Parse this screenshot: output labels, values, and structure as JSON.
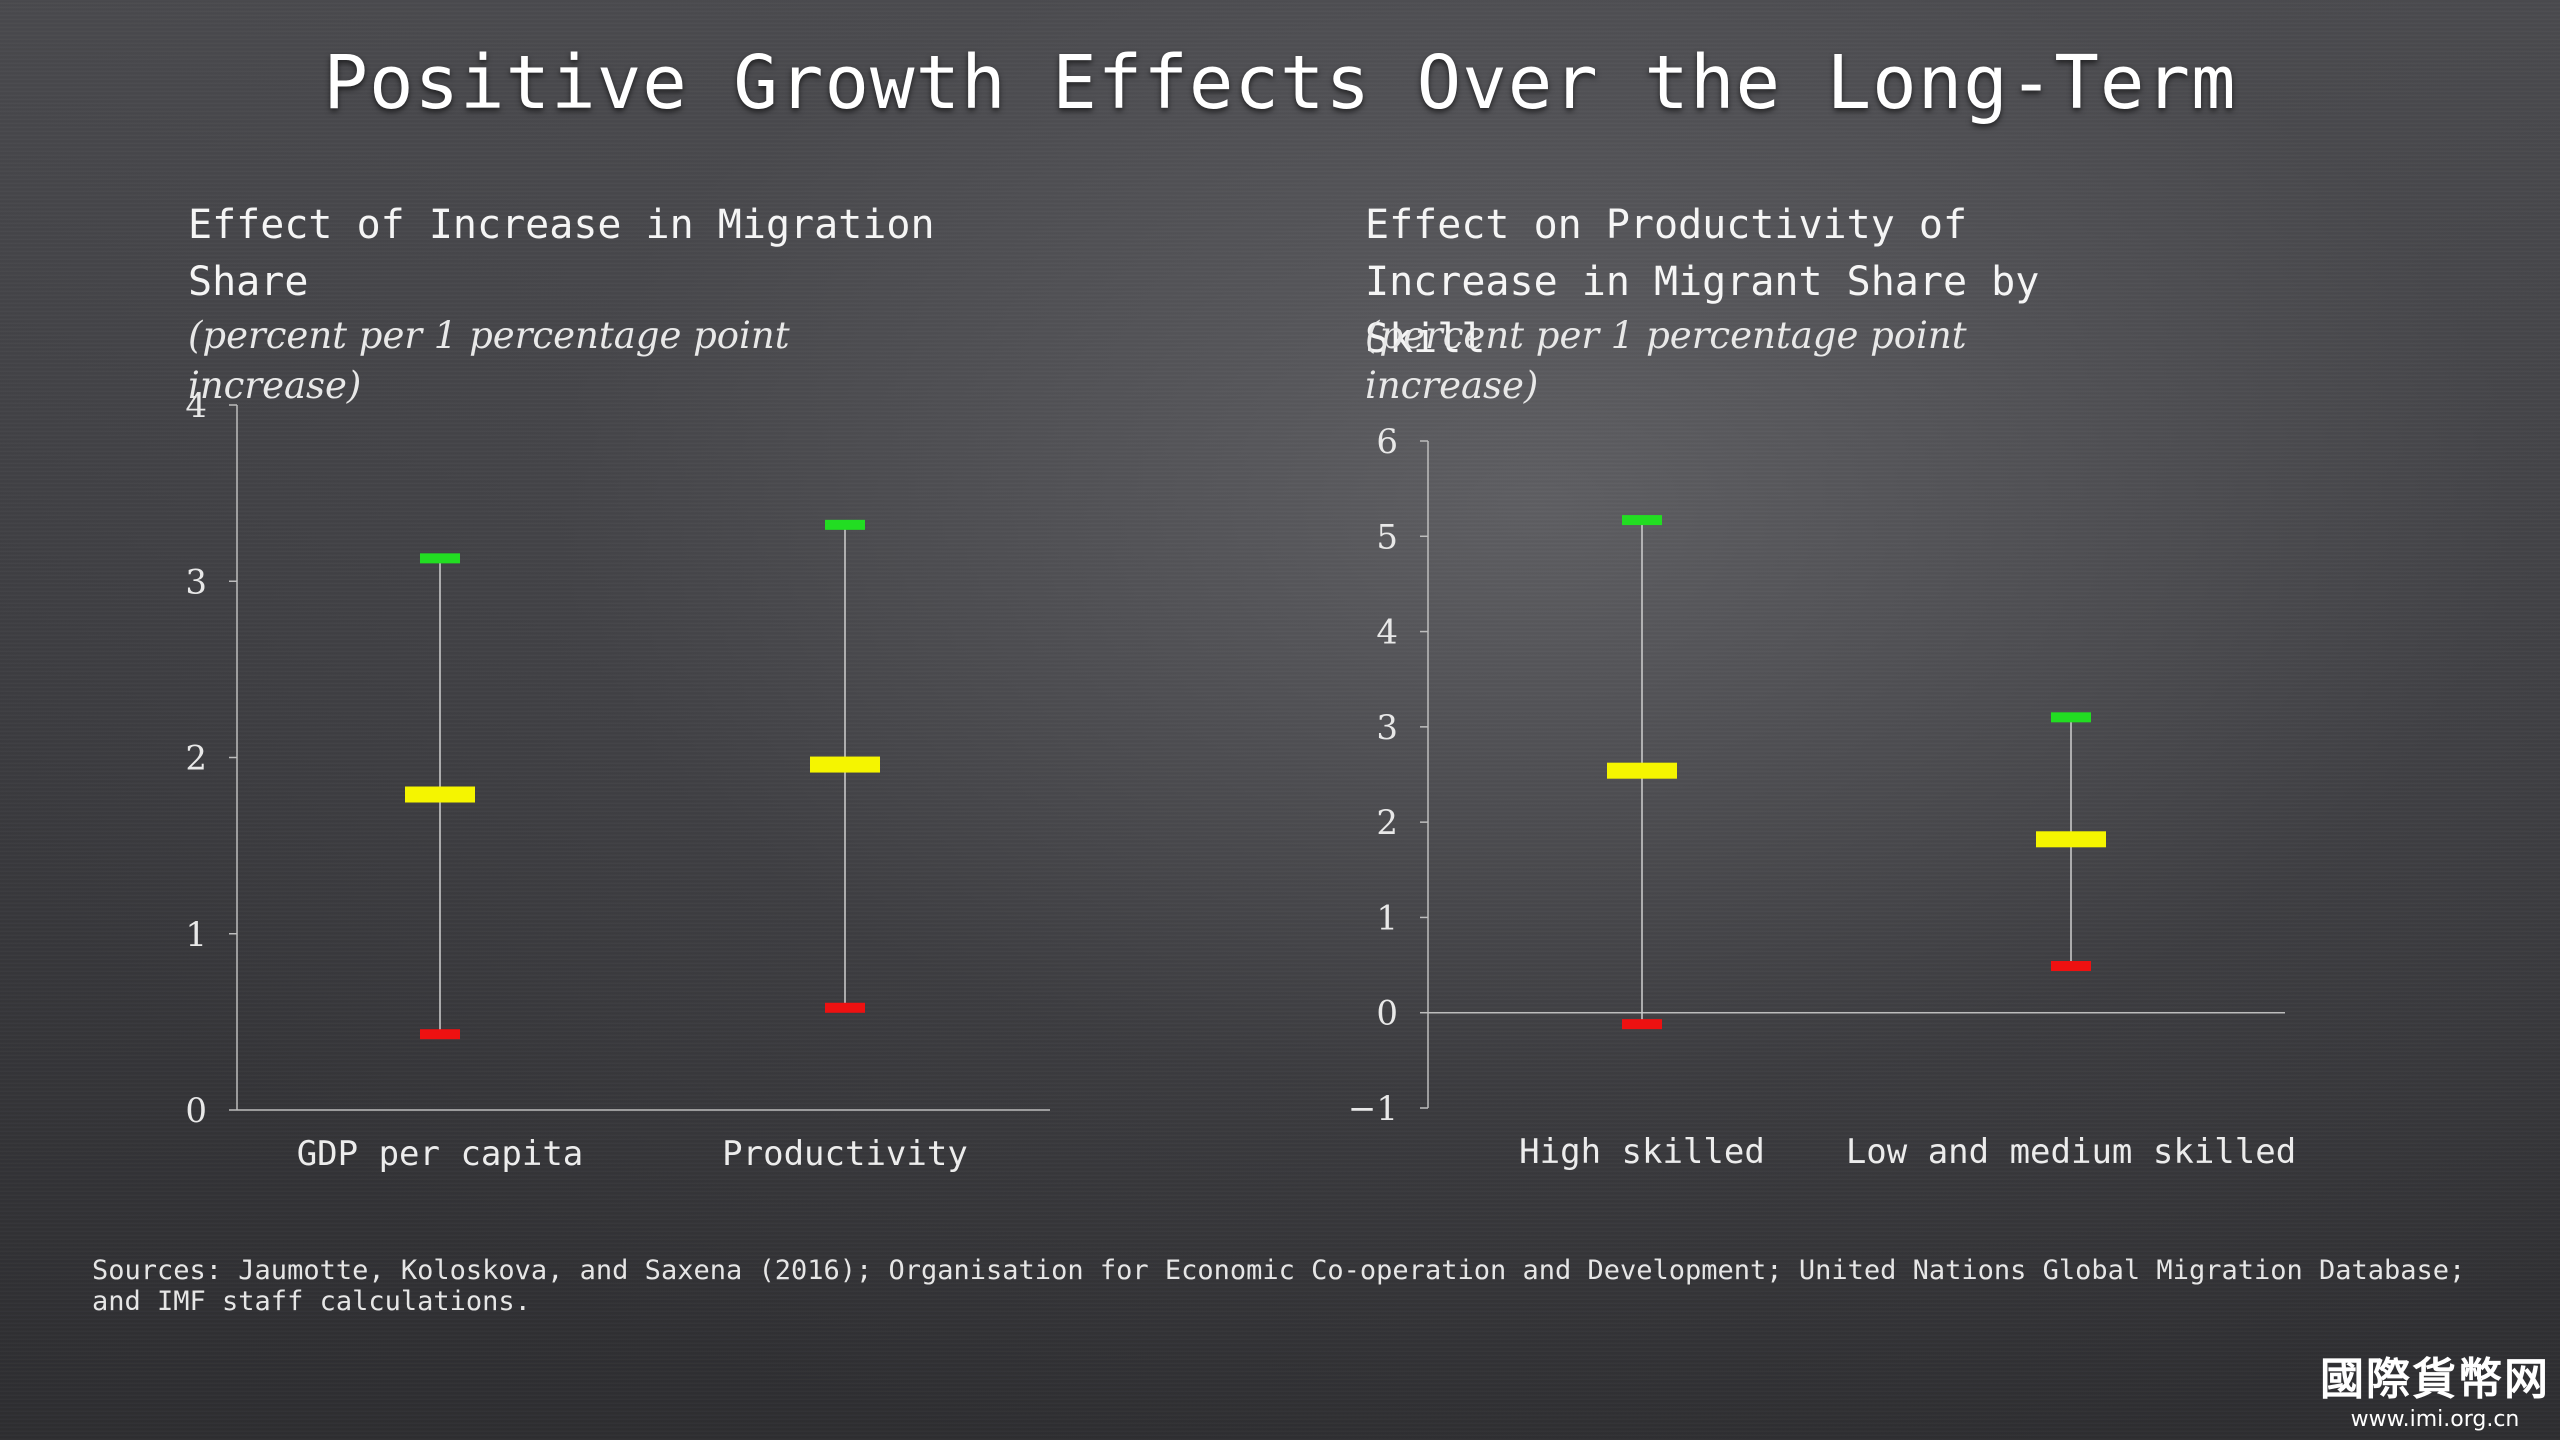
{
  "slide": {
    "title": "Positive Growth Effects Over the Long-Term",
    "sources": "Sources: Jaumotte, Koloskova, and Saxena (2016); Organisation for Economic Co-operation and Development; United Nations Global Migration Database; and IMF staff calculations."
  },
  "logo": {
    "mark": "國際貨幣网",
    "url": "www.imi.org.cn"
  },
  "colors": {
    "high": "#22dd22",
    "mid": "#f5f500",
    "low": "#ee1111",
    "axis": "#bdbdbd"
  },
  "chart_data": [
    {
      "type": "errorbar",
      "title": "Effect of Increase in Migration Share",
      "subtitle": "(percent per 1 percentage point increase)",
      "categories": [
        "GDP per capita",
        "Productivity"
      ],
      "high": [
        3.13,
        3.32
      ],
      "estimate": [
        1.79,
        1.96
      ],
      "low": [
        0.43,
        0.58
      ],
      "ylim": [
        0,
        4
      ],
      "yticks": [
        "0",
        "1",
        "2",
        "3",
        "4"
      ]
    },
    {
      "type": "errorbar",
      "title": "Effect on Productivity of Increase in Migrant Share by Skill",
      "subtitle": "(percent per 1 percentage point increase)",
      "categories": [
        "High skilled",
        "Low and medium skilled"
      ],
      "high": [
        5.17,
        3.1
      ],
      "estimate": [
        2.54,
        1.82
      ],
      "low": [
        -0.12,
        0.49
      ],
      "ylim": [
        -1,
        6
      ],
      "yticks": [
        "−1",
        "0",
        "1",
        "2",
        "3",
        "4",
        "5",
        "6"
      ]
    }
  ]
}
